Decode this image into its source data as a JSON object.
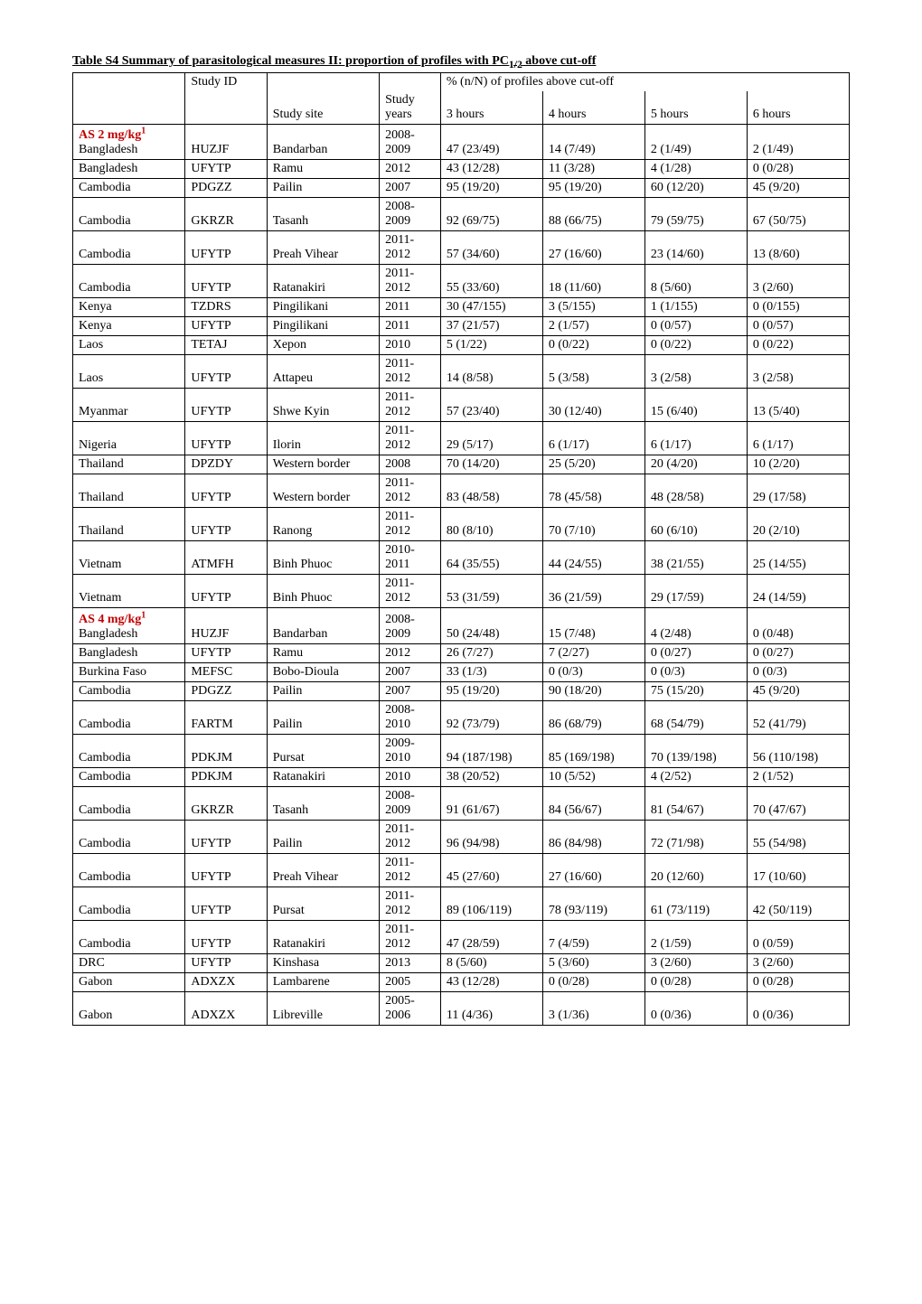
{
  "title_plain": "Table S4  Summary of parasitological measures II: proportion of profiles with PC",
  "title_sub": "1/2",
  "title_tail": " above cut-off",
  "header": {
    "study_id": "Study ID",
    "study_site": "Study site",
    "study_years": "Study years",
    "cutoff_label": "% (n/N) of profiles above cut-off",
    "h3": "3 hours",
    "h4": "4 hours",
    "h5": "5 hours",
    "h6": "6 hours"
  },
  "groups": [
    {
      "label": "AS 2 mg/kg",
      "sup": "1",
      "rows": [
        {
          "country": "Bangladesh",
          "id": "HUZJF",
          "site": "Bandarban",
          "years": "2008-2009",
          "c3": "47 (23/49)",
          "c4": "14 (7/49)",
          "c5": "2 (1/49)",
          "c6": "2 (1/49)"
        },
        {
          "country": "Bangladesh",
          "id": "UFYTP",
          "site": "Ramu",
          "years": "2012",
          "c3": "43 (12/28)",
          "c4": "11 (3/28)",
          "c5": "4 (1/28)",
          "c6": "0 (0/28)"
        },
        {
          "country": "Cambodia",
          "id": "PDGZZ",
          "site": "Pailin",
          "years": "2007",
          "c3": "95 (19/20)",
          "c4": "95 (19/20)",
          "c5": "60 (12/20)",
          "c6": "45 (9/20)"
        },
        {
          "country": "Cambodia",
          "id": "GKRZR",
          "site": "Tasanh",
          "years": "2008-2009",
          "c3": "92 (69/75)",
          "c4": "88 (66/75)",
          "c5": "79 (59/75)",
          "c6": "67 (50/75)"
        },
        {
          "country": "Cambodia",
          "id": "UFYTP",
          "site": "Preah Vihear",
          "years": "2011-2012",
          "c3": "57 (34/60)",
          "c4": "27 (16/60)",
          "c5": "23 (14/60)",
          "c6": "13 (8/60)"
        },
        {
          "country": "Cambodia",
          "id": "UFYTP",
          "site": "Ratanakiri",
          "years": "2011-2012",
          "c3": "55 (33/60)",
          "c4": "18 (11/60)",
          "c5": "8 (5/60)",
          "c6": "3 (2/60)"
        },
        {
          "country": "Kenya",
          "id": "TZDRS",
          "site": "Pingilikani",
          "years": "2011",
          "c3": "30 (47/155)",
          "c4": "3 (5/155)",
          "c5": "1 (1/155)",
          "c6": "0 (0/155)"
        },
        {
          "country": "Kenya",
          "id": "UFYTP",
          "site": "Pingilikani",
          "years": "2011",
          "c3": "37 (21/57)",
          "c4": "2 (1/57)",
          "c5": "0 (0/57)",
          "c6": "0 (0/57)"
        },
        {
          "country": "Laos",
          "id": "TETAJ",
          "site": "Xepon",
          "years": "2010",
          "c3": "5 (1/22)",
          "c4": "0 (0/22)",
          "c5": "0 (0/22)",
          "c6": "0 (0/22)"
        },
        {
          "country": "Laos",
          "id": "UFYTP",
          "site": "Attapeu",
          "years": "2011-2012",
          "c3": "14 (8/58)",
          "c4": "5 (3/58)",
          "c5": "3 (2/58)",
          "c6": "3 (2/58)"
        },
        {
          "country": "Myanmar",
          "id": "UFYTP",
          "site": "Shwe Kyin",
          "years": "2011-2012",
          "c3": "57 (23/40)",
          "c4": "30 (12/40)",
          "c5": "15 (6/40)",
          "c6": "13 (5/40)"
        },
        {
          "country": "Nigeria",
          "id": "UFYTP",
          "site": "Ilorin",
          "years": "2011-2012",
          "c3": "29 (5/17)",
          "c4": "6 (1/17)",
          "c5": "6 (1/17)",
          "c6": "6 (1/17)"
        },
        {
          "country": "Thailand",
          "id": "DPZDY",
          "site": "Western border",
          "years": "2008",
          "c3": "70 (14/20)",
          "c4": "25 (5/20)",
          "c5": "20 (4/20)",
          "c6": "10 (2/20)"
        },
        {
          "country": "Thailand",
          "id": "UFYTP",
          "site": "Western border",
          "years": "2011-2012",
          "c3": "83 (48/58)",
          "c4": "78 (45/58)",
          "c5": "48 (28/58)",
          "c6": "29 (17/58)"
        },
        {
          "country": "Thailand",
          "id": "UFYTP",
          "site": "Ranong",
          "years": "2011-2012",
          "c3": "80 (8/10)",
          "c4": "70 (7/10)",
          "c5": "60 (6/10)",
          "c6": "20 (2/10)"
        },
        {
          "country": "Vietnam",
          "id": "ATMFH",
          "site": "Binh Phuoc",
          "years": "2010-2011",
          "c3": "64 (35/55)",
          "c4": "44 (24/55)",
          "c5": "38 (21/55)",
          "c6": "25 (14/55)"
        },
        {
          "country": "Vietnam",
          "id": "UFYTP",
          "site": "Binh Phuoc",
          "years": "2011-2012",
          "c3": "53 (31/59)",
          "c4": "36 (21/59)",
          "c5": "29 (17/59)",
          "c6": "24 (14/59)"
        }
      ]
    },
    {
      "label": "AS 4 mg/kg",
      "sup": "1",
      "rows": [
        {
          "country": "Bangladesh",
          "id": "HUZJF",
          "site": "Bandarban",
          "years": "2008-2009",
          "c3": "50 (24/48)",
          "c4": "15 (7/48)",
          "c5": "4 (2/48)",
          "c6": "0 (0/48)"
        },
        {
          "country": "Bangladesh",
          "id": "UFYTP",
          "site": "Ramu",
          "years": "2012",
          "c3": "26 (7/27)",
          "c4": "7 (2/27)",
          "c5": "0 (0/27)",
          "c6": "0 (0/27)"
        },
        {
          "country": "Burkina Faso",
          "id": "MEFSC",
          "site": "Bobo-Dioula",
          "years": "2007",
          "c3": "33 (1/3)",
          "c4": "0 (0/3)",
          "c5": "0 (0/3)",
          "c6": "0 (0/3)"
        },
        {
          "country": "Cambodia",
          "id": "PDGZZ",
          "site": "Pailin",
          "years": "2007",
          "c3": "95 (19/20)",
          "c4": "90 (18/20)",
          "c5": "75 (15/20)",
          "c6": "45 (9/20)"
        },
        {
          "country": "Cambodia",
          "id": "FARTM",
          "site": "Pailin",
          "years": "2008-2010",
          "c3": "92 (73/79)",
          "c4": "86 (68/79)",
          "c5": "68 (54/79)",
          "c6": "52 (41/79)"
        },
        {
          "country": "Cambodia",
          "id": "PDKJM",
          "site": "Pursat",
          "years": "2009-2010",
          "c3": "94 (187/198)",
          "c4": "85 (169/198)",
          "c5": "70 (139/198)",
          "c6": "56 (110/198)"
        },
        {
          "country": "Cambodia",
          "id": "PDKJM",
          "site": "Ratanakiri",
          "years": "2010",
          "c3": "38 (20/52)",
          "c4": "10 (5/52)",
          "c5": "4 (2/52)",
          "c6": "2 (1/52)"
        },
        {
          "country": "Cambodia",
          "id": "GKRZR",
          "site": "Tasanh",
          "years": "2008-2009",
          "c3": "91 (61/67)",
          "c4": "84 (56/67)",
          "c5": "81 (54/67)",
          "c6": "70 (47/67)"
        },
        {
          "country": "Cambodia",
          "id": "UFYTP",
          "site": "Pailin",
          "years": "2011-2012",
          "c3": "96 (94/98)",
          "c4": "86 (84/98)",
          "c5": "72 (71/98)",
          "c6": "55 (54/98)"
        },
        {
          "country": "Cambodia",
          "id": "UFYTP",
          "site": "Preah Vihear",
          "years": "2011-2012",
          "c3": "45 (27/60)",
          "c4": "27 (16/60)",
          "c5": "20 (12/60)",
          "c6": "17 (10/60)"
        },
        {
          "country": "Cambodia",
          "id": "UFYTP",
          "site": "Pursat",
          "years": "2011-2012",
          "c3": "89 (106/119)",
          "c4": "78 (93/119)",
          "c5": "61 (73/119)",
          "c6": "42 (50/119)"
        },
        {
          "country": "Cambodia",
          "id": "UFYTP",
          "site": "Ratanakiri",
          "years": "2011-2012",
          "c3": "47 (28/59)",
          "c4": "7 (4/59)",
          "c5": "2 (1/59)",
          "c6": "0 (0/59)"
        },
        {
          "country": "DRC",
          "id": "UFYTP",
          "site": "Kinshasa",
          "years": "2013",
          "c3": "8 (5/60)",
          "c4": "5 (3/60)",
          "c5": "3 (2/60)",
          "c6": "3 (2/60)"
        },
        {
          "country": "Gabon",
          "id": "ADXZX",
          "site": "Lambarene",
          "years": "2005",
          "c3": "43 (12/28)",
          "c4": "0 (0/28)",
          "c5": "0 (0/28)",
          "c6": "0 (0/28)"
        },
        {
          "country": "Gabon",
          "id": "ADXZX",
          "site": "Libreville",
          "years": "2005-2006",
          "c3": "11 (4/36)",
          "c4": "3 (1/36)",
          "c5": "0 (0/36)",
          "c6": "0 (0/36)"
        }
      ]
    }
  ]
}
